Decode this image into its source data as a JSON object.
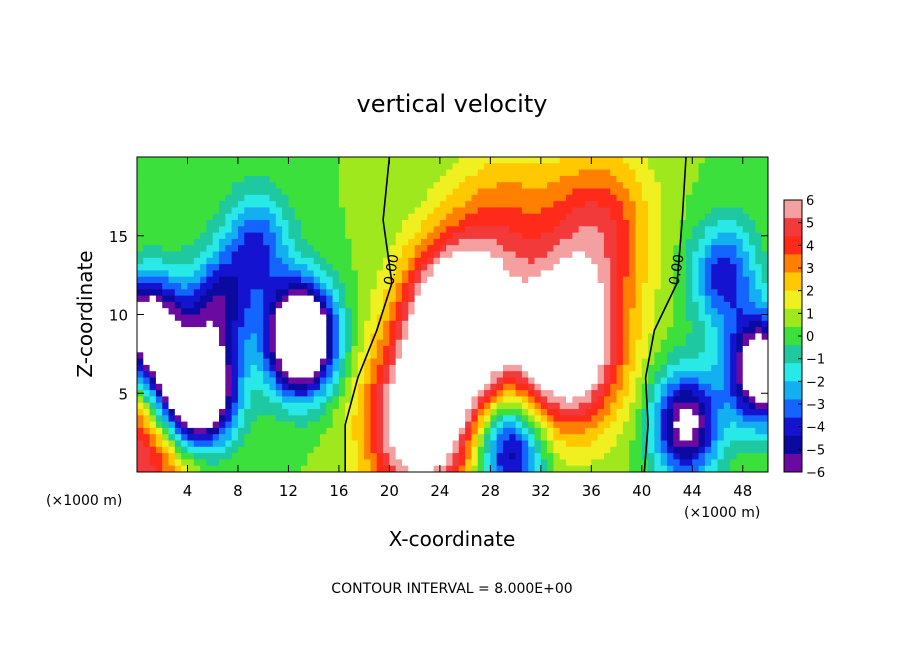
{
  "chart_data": {
    "type": "heatmap",
    "title": "vertical velocity",
    "xlabel": "X-coordinate",
    "ylabel": "Z-coordinate",
    "x_unit_left": "(×1000 m)",
    "x_unit_right": "(×1000 m)",
    "xlim": [
      0,
      50
    ],
    "ylim": [
      0,
      20
    ],
    "x_ticks": [
      4,
      8,
      12,
      16,
      20,
      24,
      28,
      32,
      36,
      40,
      44,
      48
    ],
    "y_ticks": [
      5,
      10,
      15
    ],
    "footer": "CONTOUR INTERVAL = 8.000E+00",
    "contour_labels": [
      "0.00",
      "0.00"
    ],
    "colorbar": {
      "ticks": [
        6,
        5,
        4,
        3,
        2,
        1,
        0,
        -1,
        -2,
        -3,
        -4,
        -5,
        -6
      ],
      "tick_labels": [
        "6",
        "5",
        "4",
        "3",
        "2",
        "1",
        "0",
        "−1",
        "−2",
        "−3",
        "−4",
        "−5",
        "−6"
      ],
      "colors": [
        "#f5a0a0",
        "#f23a3a",
        "#ff2a1a",
        "#ff7f00",
        "#ffc800",
        "#f0f020",
        "#a0e81e",
        "#3ce03c",
        "#1ec8a0",
        "#28e8e8",
        "#12b0f0",
        "#1464ff",
        "#1414d0",
        "#0a0aa0",
        "#6a0aa0"
      ]
    },
    "features": [
      {
        "kind": "updraft",
        "x": 25.5,
        "z": 9.5,
        "max": 10.0
      },
      {
        "kind": "updraft",
        "x": 34.0,
        "z": 8.0,
        "max": 9.0
      },
      {
        "kind": "updraft",
        "x": 22.5,
        "z": 3.0,
        "max": 8.0
      },
      {
        "kind": "updraft",
        "x": 36.5,
        "z": 15.5,
        "max": 4.0
      },
      {
        "kind": "updraft",
        "x": 29.0,
        "z": 16.0,
        "max": 2.5
      },
      {
        "kind": "updraft",
        "x": 0.8,
        "z": 1.6,
        "max": 5.0
      },
      {
        "kind": "downdraft",
        "x": 13.0,
        "z": 8.5,
        "max": -12.0
      },
      {
        "kind": "downdraft",
        "x": 9.5,
        "z": 14.5,
        "max": -4.0
      },
      {
        "kind": "downdraft",
        "x": 6.5,
        "z": 10.5,
        "max": -5.0
      },
      {
        "kind": "downdraft",
        "x": 1.0,
        "z": 9.0,
        "max": -9.0
      },
      {
        "kind": "downdraft",
        "x": 5.5,
        "z": 5.0,
        "max": -7.5
      },
      {
        "kind": "downdraft",
        "x": 3.5,
        "z": 5.0,
        "max": -7.5
      },
      {
        "kind": "downdraft",
        "x": 49.5,
        "z": 6.5,
        "max": -9.0
      },
      {
        "kind": "downdraft",
        "x": 46.5,
        "z": 12.5,
        "max": -4.5
      },
      {
        "kind": "downdraft",
        "x": 43.5,
        "z": 3.0,
        "max": -7.0
      },
      {
        "kind": "downdraft",
        "x": 29.5,
        "z": 1.5,
        "max": -6.0
      }
    ]
  }
}
